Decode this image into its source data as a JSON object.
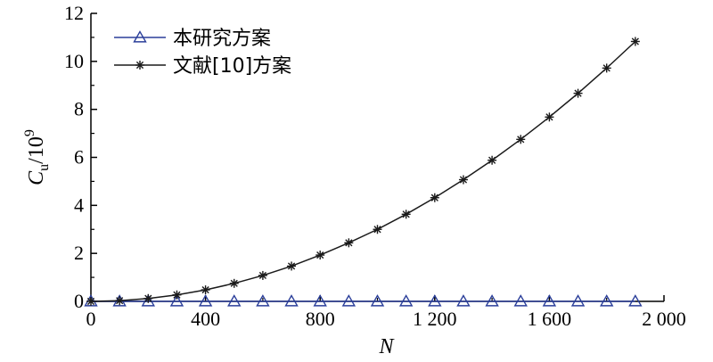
{
  "chart_data": {
    "type": "line",
    "title": "",
    "xlabel": "N",
    "ylabel": {
      "base": "C",
      "subscript": "u",
      "suffix": "/10",
      "superscript": "9"
    },
    "xlim": [
      0,
      2000
    ],
    "ylim": [
      0,
      12
    ],
    "xticks": [
      {
        "value": 0,
        "label": "0"
      },
      {
        "value": 400,
        "label": "400"
      },
      {
        "value": 800,
        "label": "800"
      },
      {
        "value": 1200,
        "label": "1 200"
      },
      {
        "value": 1600,
        "label": "1 600"
      },
      {
        "value": 2000,
        "label": "2 000"
      }
    ],
    "yticks": [
      {
        "value": 0,
        "label": "0"
      },
      {
        "value": 2,
        "label": "2"
      },
      {
        "value": 4,
        "label": "4"
      },
      {
        "value": 6,
        "label": "6"
      },
      {
        "value": 8,
        "label": "8"
      },
      {
        "value": 10,
        "label": "10"
      },
      {
        "value": 12,
        "label": "12"
      }
    ],
    "grid": false,
    "legend_position": "top-left",
    "x": [
      0,
      100,
      200,
      300,
      400,
      500,
      600,
      700,
      800,
      900,
      1000,
      1100,
      1200,
      1300,
      1400,
      1500,
      1600,
      1700,
      1800,
      1900
    ],
    "series": [
      {
        "name": "本研究方案",
        "marker": "triangle",
        "color": "#2b3f9a",
        "values": [
          0,
          0,
          0,
          0,
          0,
          0,
          0,
          0,
          0,
          0,
          0,
          0,
          0,
          0,
          0,
          0,
          0,
          0,
          0,
          0
        ]
      },
      {
        "name": "文献[10]方案",
        "marker": "asterisk",
        "color": "#1a1a1a",
        "values": [
          0,
          0.03,
          0.12,
          0.27,
          0.48,
          0.75,
          1.08,
          1.47,
          1.93,
          2.44,
          3.0,
          3.63,
          4.32,
          5.07,
          5.88,
          6.75,
          7.68,
          8.67,
          9.72,
          10.83
        ]
      }
    ]
  }
}
